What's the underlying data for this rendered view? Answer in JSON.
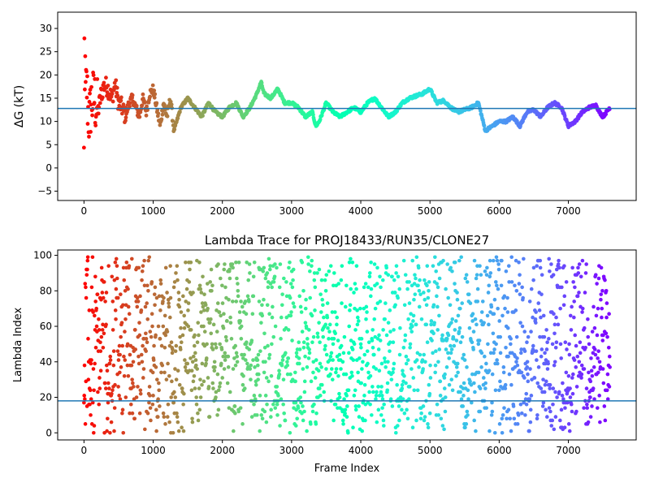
{
  "colors": {
    "hline": "#1f77b4",
    "colormap": "rainbow"
  },
  "chart_data": [
    {
      "type": "scatter",
      "title": "",
      "xlabel": "",
      "ylabel": "ΔG (kT)",
      "xlim": [
        -380,
        7980
      ],
      "ylim": [
        -7,
        33.5
      ],
      "xticks": [
        0,
        1000,
        2000,
        3000,
        4000,
        5000,
        6000,
        7000
      ],
      "yticks": [
        -5,
        0,
        5,
        10,
        15,
        20,
        25,
        30
      ],
      "hline": 12.8,
      "color_by": "frame index (rainbow, red at start to violet at end)",
      "series": [
        {
          "x": [
            0,
            20,
            40,
            60,
            80,
            100,
            150,
            200,
            250,
            300,
            350,
            400,
            450,
            500,
            550,
            600,
            650,
            700,
            750,
            800,
            850,
            900,
            950,
            1000,
            1050,
            1100,
            1150,
            1200,
            1250,
            1300,
            1400,
            1500,
            1600,
            1700,
            1800,
            1900,
            2000,
            2100,
            2200,
            2300,
            2400,
            2500,
            2560,
            2600,
            2700,
            2800,
            2900,
            3000,
            3100,
            3200,
            3300,
            3350,
            3400,
            3500,
            3600,
            3700,
            3800,
            3900,
            4000,
            4100,
            4200,
            4300,
            4400,
            4500,
            4600,
            4700,
            4800,
            4900,
            5000,
            5100,
            5200,
            5300,
            5400,
            5500,
            5600,
            5700,
            5750,
            5800,
            5900,
            6000,
            6100,
            6200,
            6300,
            6400,
            6500,
            6600,
            6700,
            6800,
            6900,
            7000,
            7100,
            7200,
            7300,
            7400,
            7450,
            7500,
            7600
          ],
          "y": [
            13,
            15,
            18,
            12,
            10,
            14,
            15,
            12,
            16,
            18,
            17,
            15,
            18,
            14,
            13,
            11,
            14,
            15,
            13,
            11,
            15,
            12,
            16,
            17,
            13,
            9,
            14,
            11,
            15,
            8,
            13,
            15,
            13,
            11,
            14,
            12,
            11,
            13,
            14,
            11,
            13,
            16,
            18.5,
            16,
            15,
            17,
            14,
            14,
            13,
            11,
            12,
            9,
            10,
            14,
            12,
            11,
            12,
            13,
            12,
            14,
            15,
            13,
            11,
            12,
            14,
            15,
            15.5,
            16,
            17,
            14,
            14.5,
            13,
            12,
            12.5,
            13,
            14,
            11,
            8,
            9,
            10,
            10,
            11,
            9,
            12,
            12.5,
            11,
            13,
            14,
            13,
            9,
            10,
            12,
            13,
            13.5,
            12,
            11,
            13
          ]
        }
      ]
    },
    {
      "type": "scatter",
      "title": "Lambda Trace for PROJ18433/RUN35/CLONE27",
      "xlabel": "Frame Index",
      "ylabel": "Lambda Index",
      "xlim": [
        -380,
        7980
      ],
      "ylim": [
        -4,
        103
      ],
      "xticks": [
        0,
        1000,
        2000,
        3000,
        4000,
        5000,
        6000,
        7000
      ],
      "yticks": [
        0,
        20,
        40,
        60,
        80,
        100
      ],
      "hline": 18,
      "lambda_range": [
        0,
        99
      ],
      "color_by": "frame index (rainbow, red at start to violet at end)"
    }
  ]
}
